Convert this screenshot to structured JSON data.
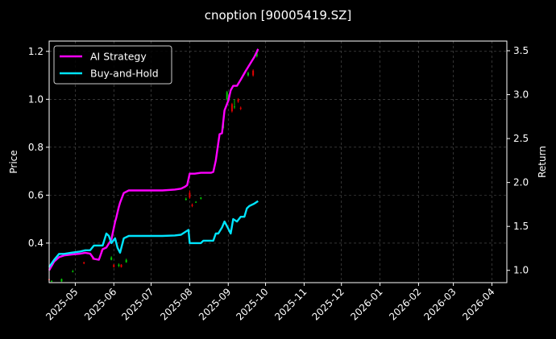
{
  "chart_data": {
    "type": "line",
    "title": "cnoption [90005419.SZ]",
    "ylabel": "Price",
    "y2label": "Return",
    "ylim": [
      0.235,
      1.243
    ],
    "y2lim": [
      0.86,
      3.61
    ],
    "xlim": [
      "2025-04-10",
      "2026-04-13"
    ],
    "grid": true,
    "legend": "top-left",
    "yticks": [
      0.4,
      0.6,
      0.8,
      1.0,
      1.2
    ],
    "y2ticks": [
      1.0,
      1.5,
      2.0,
      2.5,
      3.0,
      3.5
    ],
    "xticks": [
      "2025-05",
      "2025-06",
      "2025-07",
      "2025-08",
      "2025-09",
      "2025-10",
      "2025-11",
      "2025-12",
      "2026-01",
      "2026-02",
      "2026-03",
      "2026-04"
    ],
    "colors": {
      "background": "#000000",
      "ai": "#ff00ff",
      "bh": "#00e5ff",
      "up": "#00c800",
      "down": "#e00000",
      "grid": "#555555",
      "axis": "#ffffff"
    },
    "series": [
      {
        "name": "AI Strategy",
        "axis": "right",
        "x": [
          "2025-04-10",
          "2025-04-14",
          "2025-04-18",
          "2025-04-22",
          "2025-04-28",
          "2025-05-05",
          "2025-05-09",
          "2025-05-13",
          "2025-05-16",
          "2025-05-20",
          "2025-05-23",
          "2025-05-26",
          "2025-05-30",
          "2025-06-02",
          "2025-06-03",
          "2025-06-05",
          "2025-06-06",
          "2025-06-09",
          "2025-06-13",
          "2025-06-20",
          "2025-06-30",
          "2025-07-10",
          "2025-07-20",
          "2025-07-25",
          "2025-07-28",
          "2025-07-30",
          "2025-08-01",
          "2025-08-05",
          "2025-08-10",
          "2025-08-15",
          "2025-08-18",
          "2025-08-20",
          "2025-08-22",
          "2025-08-25",
          "2025-08-27",
          "2025-08-29",
          "2025-09-01",
          "2025-09-03",
          "2025-09-05",
          "2025-09-08",
          "2025-09-11",
          "2025-09-15",
          "2025-09-19",
          "2025-09-22",
          "2025-09-24",
          "2025-09-25"
        ],
        "values": [
          1.0,
          1.1,
          1.15,
          1.17,
          1.18,
          1.19,
          1.2,
          1.19,
          1.13,
          1.12,
          1.24,
          1.26,
          1.35,
          1.55,
          1.6,
          1.72,
          1.77,
          1.88,
          1.91,
          1.91,
          1.91,
          1.91,
          1.92,
          1.93,
          1.95,
          1.97,
          2.1,
          2.1,
          2.11,
          2.11,
          2.11,
          2.12,
          2.25,
          2.55,
          2.56,
          2.82,
          2.93,
          3.05,
          3.1,
          3.1,
          3.17,
          3.27,
          3.36,
          3.43,
          3.49,
          3.52
        ]
      },
      {
        "name": "Buy-and-Hold",
        "axis": "left",
        "x": [
          "2025-04-10",
          "2025-04-14",
          "2025-04-18",
          "2025-04-22",
          "2025-04-28",
          "2025-05-05",
          "2025-05-09",
          "2025-05-13",
          "2025-05-16",
          "2025-05-20",
          "2025-05-23",
          "2025-05-26",
          "2025-05-28",
          "2025-05-30",
          "2025-06-02",
          "2025-06-04",
          "2025-06-06",
          "2025-06-09",
          "2025-06-13",
          "2025-06-20",
          "2025-06-30",
          "2025-07-10",
          "2025-07-20",
          "2025-07-25",
          "2025-07-28",
          "2025-07-31",
          "2025-08-01",
          "2025-08-05",
          "2025-08-10",
          "2025-08-12",
          "2025-08-15",
          "2025-08-20",
          "2025-08-22",
          "2025-08-24",
          "2025-08-27",
          "2025-08-29",
          "2025-09-01",
          "2025-09-03",
          "2025-09-05",
          "2025-09-08",
          "2025-09-11",
          "2025-09-14",
          "2025-09-16",
          "2025-09-18",
          "2025-09-22",
          "2025-09-25"
        ],
        "values": [
          0.3,
          0.33,
          0.355,
          0.355,
          0.36,
          0.365,
          0.37,
          0.37,
          0.39,
          0.39,
          0.39,
          0.44,
          0.43,
          0.4,
          0.42,
          0.38,
          0.36,
          0.42,
          0.43,
          0.43,
          0.43,
          0.43,
          0.432,
          0.435,
          0.445,
          0.455,
          0.4,
          0.4,
          0.4,
          0.41,
          0.41,
          0.41,
          0.44,
          0.44,
          0.465,
          0.49,
          0.46,
          0.44,
          0.5,
          0.49,
          0.51,
          0.51,
          0.545,
          0.555,
          0.565,
          0.575
        ]
      }
    ],
    "candles": [
      {
        "x": "2025-04-10",
        "o": 0.25,
        "c": 0.245,
        "h": 0.255,
        "l": 0.24
      },
      {
        "x": "2025-04-12",
        "o": 0.24,
        "c": 0.242,
        "h": 0.245,
        "l": 0.238
      },
      {
        "x": "2025-04-20",
        "o": 0.24,
        "c": 0.25,
        "h": 0.252,
        "l": 0.238
      },
      {
        "x": "2025-04-29",
        "o": 0.28,
        "c": 0.282,
        "h": 0.288,
        "l": 0.278
      },
      {
        "x": "2025-05-08",
        "o": 0.32,
        "c": 0.315,
        "h": 0.322,
        "l": 0.312
      },
      {
        "x": "2025-05-15",
        "o": 0.34,
        "c": 0.335,
        "h": 0.342,
        "l": 0.33
      },
      {
        "x": "2025-05-22",
        "o": 0.37,
        "c": 0.36,
        "h": 0.372,
        "l": 0.358
      },
      {
        "x": "2025-05-30",
        "o": 0.33,
        "c": 0.34,
        "h": 0.345,
        "l": 0.328
      },
      {
        "x": "2025-06-01",
        "o": 0.31,
        "c": 0.3,
        "h": 0.312,
        "l": 0.298
      },
      {
        "x": "2025-06-05",
        "o": 0.305,
        "c": 0.31,
        "h": 0.315,
        "l": 0.3
      },
      {
        "x": "2025-06-07",
        "o": 0.31,
        "c": 0.3,
        "h": 0.312,
        "l": 0.298
      },
      {
        "x": "2025-06-11",
        "o": 0.32,
        "c": 0.33,
        "h": 0.335,
        "l": 0.318
      },
      {
        "x": "2025-07-29",
        "o": 0.58,
        "c": 0.585,
        "h": 0.59,
        "l": 0.578
      },
      {
        "x": "2025-08-01",
        "o": 0.61,
        "c": 0.59,
        "h": 0.62,
        "l": 0.585
      },
      {
        "x": "2025-08-03",
        "o": 0.56,
        "c": 0.555,
        "h": 0.565,
        "l": 0.55
      },
      {
        "x": "2025-08-06",
        "o": 0.57,
        "c": 0.572,
        "h": 0.575,
        "l": 0.568
      },
      {
        "x": "2025-08-10",
        "o": 0.585,
        "c": 0.59,
        "h": 0.592,
        "l": 0.582
      },
      {
        "x": "2025-08-28",
        "o": 0.88,
        "c": 0.9,
        "h": 0.905,
        "l": 0.875
      },
      {
        "x": "2025-08-31",
        "o": 1.0,
        "c": 1.03,
        "h": 1.035,
        "l": 0.995
      },
      {
        "x": "2025-09-04",
        "o": 0.98,
        "c": 0.95,
        "h": 0.985,
        "l": 0.945
      },
      {
        "x": "2025-09-06",
        "o": 0.97,
        "c": 0.97,
        "h": 1.0,
        "l": 0.96
      },
      {
        "x": "2025-09-09",
        "o": 1.0,
        "c": 0.99,
        "h": 1.005,
        "l": 0.985
      },
      {
        "x": "2025-09-11",
        "o": 0.965,
        "c": 0.96,
        "h": 0.97,
        "l": 0.955
      },
      {
        "x": "2025-09-17",
        "o": 1.1,
        "c": 1.11,
        "h": 1.115,
        "l": 1.095
      },
      {
        "x": "2025-09-21",
        "o": 1.12,
        "c": 1.1,
        "h": 1.125,
        "l": 1.095
      },
      {
        "x": "2025-09-24",
        "o": 1.18,
        "c": 1.2,
        "h": 1.205,
        "l": 1.175
      }
    ]
  }
}
